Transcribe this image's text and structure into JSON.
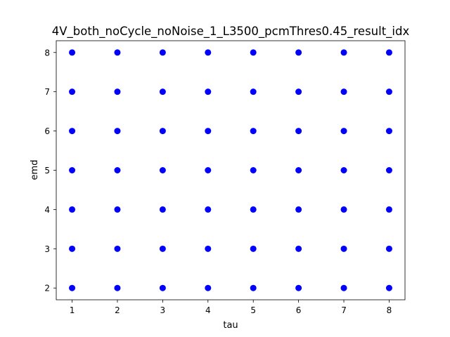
{
  "chart_data": {
    "type": "scatter",
    "title": "4V_both_noCycle_noNoise_1_L3500_pcmThres0.45_result_idx",
    "xlabel": "tau",
    "ylabel": "emd",
    "xticks": [
      1,
      2,
      3,
      4,
      5,
      6,
      7,
      8
    ],
    "yticks": [
      2,
      3,
      4,
      5,
      6,
      7,
      8
    ],
    "xlim": [
      0.65,
      8.35
    ],
    "ylim": [
      1.7,
      8.3
    ],
    "grid": false,
    "legend": "none",
    "marker_color": "#0000ff",
    "series": [
      {
        "x": [
          1,
          2,
          3,
          4,
          5,
          6,
          7,
          8,
          1,
          2,
          3,
          4,
          5,
          6,
          7,
          8,
          1,
          2,
          3,
          4,
          5,
          6,
          7,
          8,
          1,
          2,
          3,
          4,
          5,
          6,
          7,
          8,
          1,
          2,
          3,
          4,
          5,
          6,
          7,
          8,
          1,
          2,
          3,
          4,
          5,
          6,
          7,
          8,
          1,
          2,
          3,
          4,
          5,
          6,
          7,
          8
        ],
        "y": [
          2,
          2,
          2,
          2,
          2,
          2,
          2,
          2,
          3,
          3,
          3,
          3,
          3,
          3,
          3,
          3,
          4,
          4,
          4,
          4,
          4,
          4,
          4,
          4,
          5,
          5,
          5,
          5,
          5,
          5,
          5,
          5,
          6,
          6,
          6,
          6,
          6,
          6,
          6,
          6,
          7,
          7,
          7,
          7,
          7,
          7,
          7,
          7,
          8,
          8,
          8,
          8,
          8,
          8,
          8,
          8
        ]
      }
    ]
  }
}
